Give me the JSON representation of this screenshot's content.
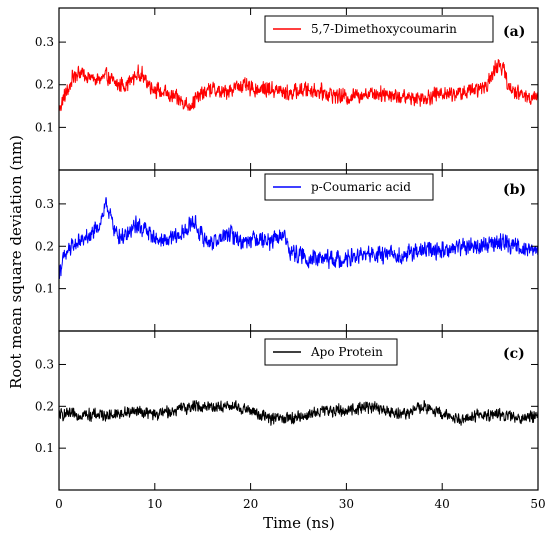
{
  "chart_data": {
    "type": "line",
    "xlabel": "Time (ns)",
    "ylabel": "Root mean square deviation (nm)",
    "xlim": [
      0,
      50
    ],
    "x_ticks": [
      "0",
      "10",
      "20",
      "30",
      "40",
      "50"
    ],
    "grid": false,
    "legend_placement": "top-right",
    "panels": [
      {
        "label": "(a)",
        "ylim": [
          0,
          0.38
        ],
        "y_ticks": [
          "0.1",
          "0.2",
          "0.3"
        ],
        "series": [
          {
            "name": "5,7-Dimethoxycoumarin",
            "color": "#ff0000",
            "x": [
              0,
              0.5,
              1,
              1.5,
              2,
              3,
              4,
              5,
              6,
              7,
              8,
              8.5,
              9,
              10,
              11,
              12,
              13,
              13.5,
              14,
              15,
              16,
              17,
              18,
              19,
              20,
              22,
              24,
              26,
              28,
              30,
              32,
              34,
              36,
              38,
              40,
              42,
              44,
              45,
              45.5,
              46,
              46.5,
              47,
              48,
              49,
              50
            ],
            "values": [
              0.14,
              0.17,
              0.19,
              0.22,
              0.23,
              0.22,
              0.21,
              0.22,
              0.2,
              0.2,
              0.22,
              0.23,
              0.21,
              0.19,
              0.18,
              0.17,
              0.16,
              0.15,
              0.16,
              0.18,
              0.19,
              0.18,
              0.19,
              0.2,
              0.19,
              0.19,
              0.18,
              0.19,
              0.18,
              0.17,
              0.18,
              0.18,
              0.17,
              0.17,
              0.18,
              0.18,
              0.19,
              0.21,
              0.24,
              0.25,
              0.23,
              0.19,
              0.18,
              0.17,
              0.18
            ],
            "noise": 0.022
          }
        ]
      },
      {
        "label": "(b)",
        "ylim": [
          0,
          0.38
        ],
        "y_ticks": [
          "0.1",
          "0.2",
          "0.3"
        ],
        "series": [
          {
            "name": "p-Coumaric acid",
            "color": "#0000ff",
            "x": [
              0,
              0.5,
              1,
              2,
              3,
              4,
              4.5,
              5,
              5.5,
              6,
              7,
              8,
              9,
              10,
              11,
              12,
              13,
              14,
              15,
              16,
              17,
              18,
              19,
              20,
              21,
              22,
              23,
              23.5,
              24,
              25,
              26,
              28,
              30,
              32,
              34,
              36,
              38,
              40,
              42,
              44,
              46,
              48,
              50
            ],
            "values": [
              0.14,
              0.17,
              0.19,
              0.21,
              0.22,
              0.24,
              0.27,
              0.3,
              0.26,
              0.23,
              0.22,
              0.25,
              0.24,
              0.22,
              0.21,
              0.22,
              0.23,
              0.26,
              0.22,
              0.21,
              0.22,
              0.23,
              0.21,
              0.22,
              0.22,
              0.21,
              0.22,
              0.23,
              0.19,
              0.18,
              0.17,
              0.17,
              0.17,
              0.18,
              0.18,
              0.18,
              0.19,
              0.19,
              0.2,
              0.2,
              0.21,
              0.2,
              0.19
            ],
            "noise": 0.024
          }
        ]
      },
      {
        "label": "(c)",
        "ylim": [
          0,
          0.38
        ],
        "y_ticks": [
          "0.1",
          "0.2",
          "0.3"
        ],
        "series": [
          {
            "name": "Apo Protein",
            "color": "#000000",
            "x": [
              0,
              2,
              4,
              6,
              8,
              10,
              12,
              14,
              16,
              18,
              20,
              22,
              24,
              26,
              28,
              30,
              32,
              34,
              36,
              38,
              40,
              42,
              44,
              46,
              48,
              50
            ],
            "values": [
              0.18,
              0.18,
              0.18,
              0.18,
              0.19,
              0.18,
              0.19,
              0.2,
              0.2,
              0.2,
              0.19,
              0.17,
              0.17,
              0.18,
              0.19,
              0.19,
              0.2,
              0.19,
              0.18,
              0.2,
              0.18,
              0.17,
              0.18,
              0.18,
              0.17,
              0.18
            ],
            "noise": 0.017
          }
        ]
      }
    ]
  }
}
